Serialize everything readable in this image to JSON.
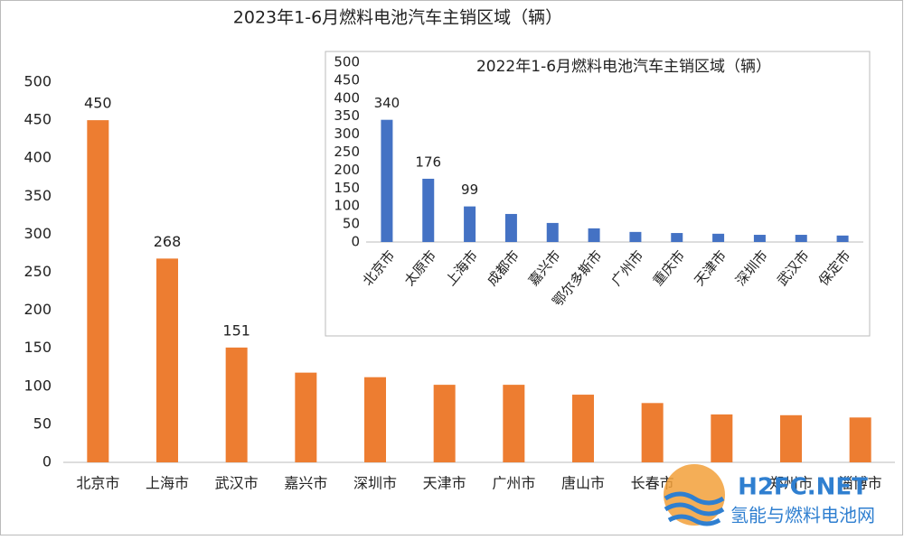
{
  "chart_data": [
    {
      "type": "bar",
      "title": "2023年1-6月燃料电池汽车主销区域（辆）",
      "categories": [
        "北京市",
        "上海市",
        "武汉市",
        "嘉兴市",
        "深圳市",
        "天津市",
        "广州市",
        "唐山市",
        "长春市",
        null,
        "郑州市",
        "淄博市"
      ],
      "values": [
        450,
        268,
        151,
        118,
        112,
        102,
        102,
        89,
        78,
        63,
        62,
        59
      ],
      "value_labels": [
        450,
        268,
        151,
        null,
        null,
        null,
        null,
        null,
        null,
        null,
        null,
        null
      ],
      "color": "#ed7d31",
      "ylim": [
        0,
        500
      ],
      "yticks": [
        0,
        50,
        100,
        150,
        200,
        250,
        300,
        350,
        400,
        450,
        500
      ],
      "grid": false
    },
    {
      "type": "bar",
      "title": "2022年1-6月燃料电池汽车主销区域（辆）",
      "categories": [
        "北京市",
        "太原市",
        "上海市",
        "成都市",
        "嘉兴市",
        "鄂尔多斯市",
        "广州市",
        "重庆市",
        "天津市",
        "深圳市",
        "武汉市",
        "保定市"
      ],
      "values": [
        340,
        176,
        99,
        78,
        53,
        38,
        28,
        25,
        23,
        20,
        20,
        18
      ],
      "value_labels": [
        340,
        176,
        99,
        null,
        null,
        null,
        null,
        null,
        null,
        null,
        null,
        null
      ],
      "color": "#4472c4",
      "ylim": [
        0,
        500
      ],
      "yticks": [
        0,
        50,
        100,
        150,
        200,
        250,
        300,
        350,
        400,
        450,
        500
      ],
      "grid": false
    }
  ],
  "watermark": {
    "logo": "H2FC.NET",
    "name": "氢能与燃料电池网"
  }
}
